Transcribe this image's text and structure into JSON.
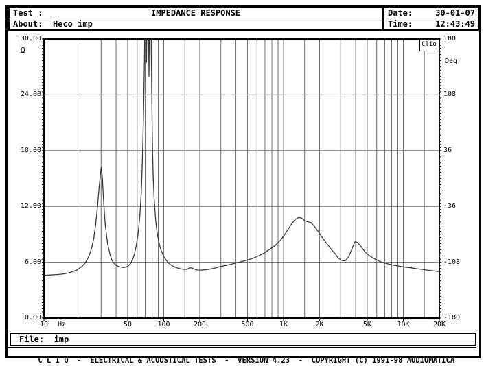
{
  "header": {
    "test_label": "Test :",
    "title": "IMPEDANCE RESPONSE",
    "about_label": "About:",
    "about_value": "Heco imp",
    "date_label": "Date:",
    "date_value": "30-01-07",
    "time_label": "Time:",
    "time_value": "12:43:49"
  },
  "plot_badge": "Clio",
  "file_bar": {
    "label": "File:",
    "value": "imp"
  },
  "footer": {
    "text": "C L I O  -  ELECTRICAL & ACOUSTICAL TESTS  -  VERSION 4.23  -  COPYRIGHT (C) 1991-98 AUDIOMATICA"
  },
  "chart_data": {
    "type": "line",
    "title": "IMPEDANCE RESPONSE",
    "x_axis": {
      "unit": "Hz",
      "scale": "log",
      "min": 10,
      "max": 20000,
      "tick_labels": [
        {
          "f": 10,
          "label": "10"
        },
        {
          "f": 50,
          "label": "50"
        },
        {
          "f": 100,
          "label": "100"
        },
        {
          "f": 200,
          "label": "200"
        },
        {
          "f": 500,
          "label": "500"
        },
        {
          "f": 1000,
          "label": "1K"
        },
        {
          "f": 2000,
          "label": "2K"
        },
        {
          "f": 5000,
          "label": "5K"
        },
        {
          "f": 10000,
          "label": "10K"
        },
        {
          "f": 20000,
          "label": "20K"
        }
      ],
      "grid_freqs": [
        20,
        30,
        40,
        50,
        60,
        70,
        80,
        90,
        100,
        150,
        200,
        300,
        400,
        500,
        600,
        700,
        800,
        900,
        1000,
        1500,
        2000,
        3000,
        4000,
        5000,
        6000,
        7000,
        8000,
        9000,
        10000,
        15000
      ]
    },
    "y_left": {
      "unit": "Ω",
      "min": 0,
      "max": 30,
      "ticks": [
        {
          "v": 30,
          "label": "30.00"
        },
        {
          "v": 24,
          "label": "24.00"
        },
        {
          "v": 18,
          "label": "18.00"
        },
        {
          "v": 12,
          "label": "12.00"
        },
        {
          "v": 6,
          "label": "6.00"
        },
        {
          "v": 0,
          "label": "0.00"
        }
      ]
    },
    "y_right": {
      "unit": "Deg",
      "min": -180,
      "max": 180,
      "ticks": [
        {
          "v": 180,
          "label": "180"
        },
        {
          "v": 108,
          "label": "108"
        },
        {
          "v": 36,
          "label": "36"
        },
        {
          "v": -36,
          "label": "-36"
        },
        {
          "v": -108,
          "label": "-108"
        },
        {
          "v": -180,
          "label": "-180"
        }
      ]
    },
    "grid": true,
    "series": [
      {
        "name": "impedance magnitude (ohm vs Hz)",
        "color": "#3a3a3a",
        "points": [
          [
            10,
            4.6
          ],
          [
            11,
            4.62
          ],
          [
            12,
            4.65
          ],
          [
            13,
            4.68
          ],
          [
            14,
            4.72
          ],
          [
            15,
            4.78
          ],
          [
            16,
            4.85
          ],
          [
            17,
            4.95
          ],
          [
            18,
            5.05
          ],
          [
            19,
            5.2
          ],
          [
            20,
            5.4
          ],
          [
            21,
            5.6
          ],
          [
            22,
            5.9
          ],
          [
            23,
            6.3
          ],
          [
            24,
            6.8
          ],
          [
            25,
            7.5
          ],
          [
            26,
            8.5
          ],
          [
            27,
            10.0
          ],
          [
            28,
            12.0
          ],
          [
            29,
            14.3
          ],
          [
            30,
            16.2
          ],
          [
            30.8,
            15.0
          ],
          [
            31.5,
            12.5
          ],
          [
            32.5,
            10.0
          ],
          [
            34,
            8.0
          ],
          [
            35.5,
            6.9
          ],
          [
            37,
            6.2
          ],
          [
            39,
            5.8
          ],
          [
            41,
            5.6
          ],
          [
            43,
            5.5
          ],
          [
            45,
            5.45
          ],
          [
            47,
            5.45
          ],
          [
            49,
            5.5
          ],
          [
            51,
            5.65
          ],
          [
            53,
            5.9
          ],
          [
            55,
            6.3
          ],
          [
            57,
            6.9
          ],
          [
            59,
            7.8
          ],
          [
            61,
            9.0
          ],
          [
            63,
            10.8
          ],
          [
            65,
            13.5
          ],
          [
            66,
            16
          ],
          [
            67,
            19
          ],
          [
            68,
            23
          ],
          [
            69,
            28
          ],
          [
            69.5,
            31
          ],
          [
            70,
            35
          ],
          [
            70.8,
            36
          ],
          [
            71.3,
            30
          ],
          [
            71.8,
            27.5
          ],
          [
            72.3,
            31
          ],
          [
            73,
            36
          ],
          [
            74,
            37
          ],
          [
            74.8,
            30
          ],
          [
            75.3,
            26
          ],
          [
            75.8,
            30
          ],
          [
            76.5,
            36
          ],
          [
            77.5,
            37
          ],
          [
            78.3,
            33
          ],
          [
            79,
            27
          ],
          [
            79.8,
            22
          ],
          [
            80.5,
            18.5
          ],
          [
            81.5,
            15.5
          ],
          [
            83,
            13
          ],
          [
            85,
            11
          ],
          [
            87,
            9.7
          ],
          [
            89,
            8.8
          ],
          [
            92,
            7.9
          ],
          [
            95,
            7.3
          ],
          [
            100,
            6.6
          ],
          [
            105,
            6.2
          ],
          [
            110,
            5.9
          ],
          [
            118,
            5.6
          ],
          [
            126,
            5.45
          ],
          [
            135,
            5.32
          ],
          [
            144,
            5.25
          ],
          [
            152,
            5.22
          ],
          [
            158,
            5.28
          ],
          [
            165,
            5.38
          ],
          [
            170,
            5.4
          ],
          [
            176,
            5.32
          ],
          [
            183,
            5.22
          ],
          [
            192,
            5.16
          ],
          [
            205,
            5.15
          ],
          [
            220,
            5.18
          ],
          [
            240,
            5.25
          ],
          [
            265,
            5.35
          ],
          [
            290,
            5.5
          ],
          [
            320,
            5.62
          ],
          [
            355,
            5.75
          ],
          [
            395,
            5.9
          ],
          [
            440,
            6.05
          ],
          [
            490,
            6.2
          ],
          [
            545,
            6.4
          ],
          [
            610,
            6.65
          ],
          [
            680,
            6.95
          ],
          [
            760,
            7.35
          ],
          [
            850,
            7.8
          ],
          [
            950,
            8.4
          ],
          [
            1050,
            9.2
          ],
          [
            1150,
            10.0
          ],
          [
            1250,
            10.6
          ],
          [
            1330,
            10.8
          ],
          [
            1420,
            10.75
          ],
          [
            1500,
            10.45
          ],
          [
            1600,
            10.35
          ],
          [
            1700,
            10.25
          ],
          [
            1800,
            9.9
          ],
          [
            1950,
            9.3
          ],
          [
            2100,
            8.7
          ],
          [
            2300,
            8.0
          ],
          [
            2500,
            7.4
          ],
          [
            2700,
            6.9
          ],
          [
            2850,
            6.5
          ],
          [
            3000,
            6.25
          ],
          [
            3150,
            6.15
          ],
          [
            3300,
            6.2
          ],
          [
            3500,
            6.6
          ],
          [
            3700,
            7.3
          ],
          [
            3850,
            7.9
          ],
          [
            3950,
            8.2
          ],
          [
            4100,
            8.15
          ],
          [
            4300,
            7.9
          ],
          [
            4550,
            7.5
          ],
          [
            4800,
            7.1
          ],
          [
            5100,
            6.8
          ],
          [
            5500,
            6.5
          ],
          [
            6000,
            6.25
          ],
          [
            6600,
            6.0
          ],
          [
            7300,
            5.85
          ],
          [
            8000,
            5.72
          ],
          [
            9000,
            5.6
          ],
          [
            10000,
            5.5
          ],
          [
            11500,
            5.4
          ],
          [
            13000,
            5.3
          ],
          [
            15000,
            5.2
          ],
          [
            17000,
            5.1
          ],
          [
            20000,
            5.0
          ]
        ]
      }
    ],
    "plot_note_colors": {
      "grid": "#6e6e6e",
      "border": "#000000",
      "curve": "#3a3a3a"
    }
  }
}
